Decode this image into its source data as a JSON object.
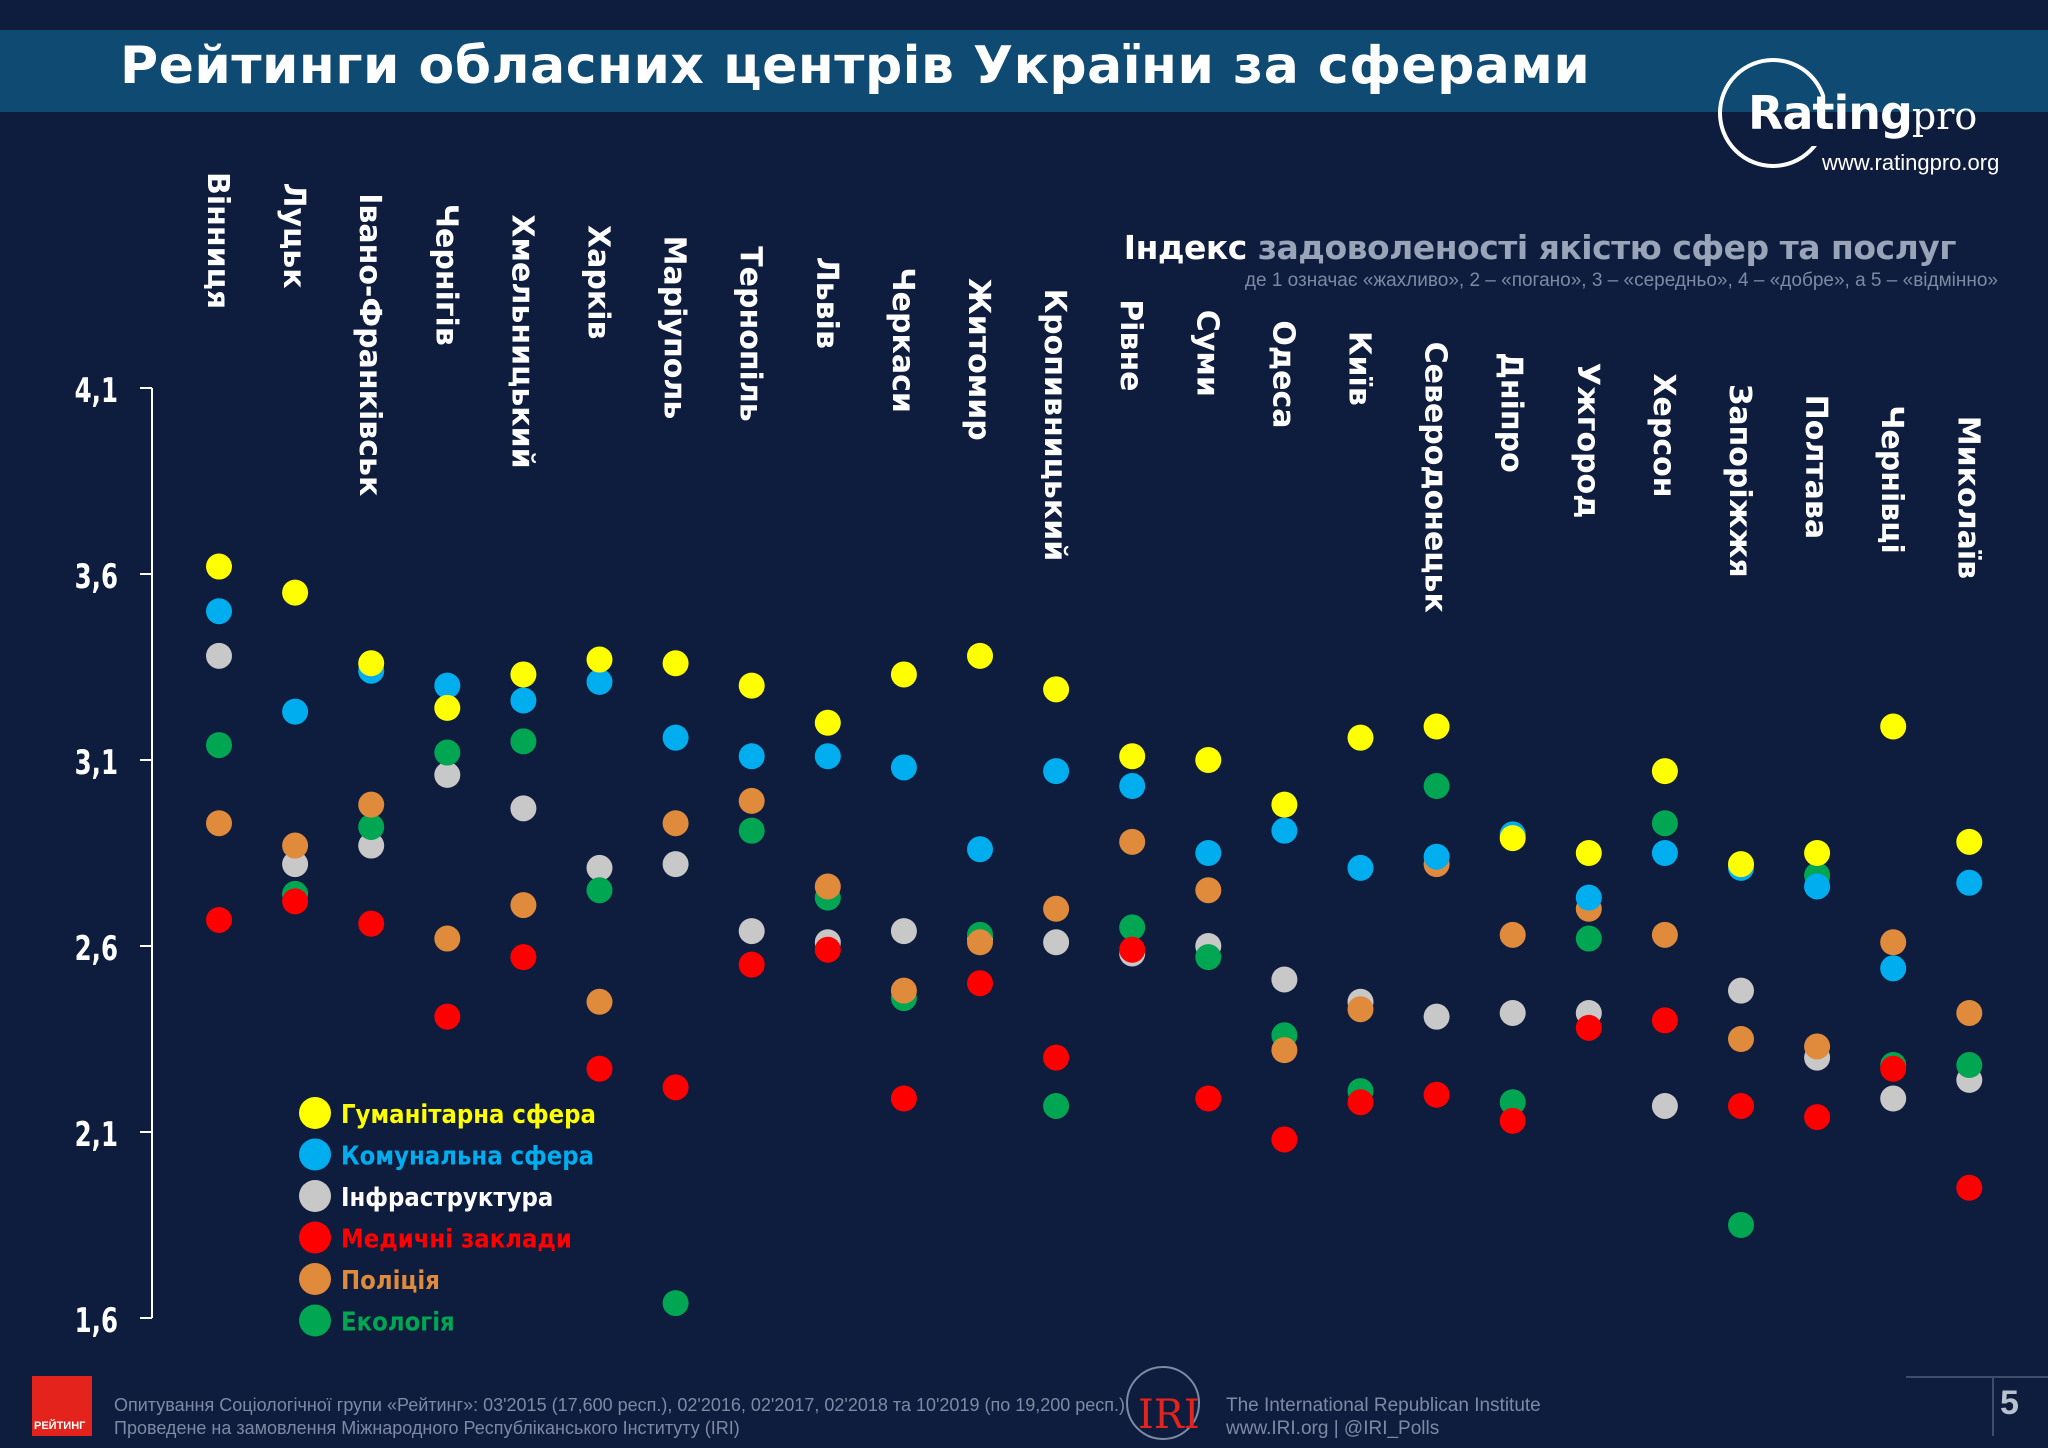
{
  "header": {
    "title": "Рейтинги обласних центрів України за сферами",
    "logo_word": "Rating",
    "logo_suffix": "pro",
    "logo_url": "www.ratingpro.org"
  },
  "subtitle": {
    "main_bold": "Індекс",
    "main_rest": " задоволеності якістю сфер та послуг",
    "note": "де 1 означає «жахливо», 2 – «погано», 3 – «середньо», 4 – «добре», а 5 – «відмінно»"
  },
  "footer": {
    "badge": "РЕЙТИНГ",
    "line1": "Опитування Соціологічної групи «Рейтинг»: 03'2015 (17,600 респ.), 02'2016, 02'2017, 02'2018 та 10'2019 (по 19,200 респ.).",
    "line2": "Проведене на замовлення Міжнародного Республіканського Інституту (IRI)",
    "iri_logo": "IRI",
    "iri_line1": "The International Republican Institute",
    "iri_line2": "www.IRI.org | @IRI_Polls",
    "page_number": "5"
  },
  "colors": {
    "background": "#0e1d3d",
    "axis": "#ffffff",
    "humanitarian": "#ffff00",
    "communal": "#00aeef",
    "infrastructure": "#c8c8c8",
    "medical": "#ff0000",
    "police": "#e08a3c",
    "ecology": "#00a651"
  },
  "chart_data": {
    "type": "scatter",
    "title": "",
    "ylim": [
      1.6,
      4.1
    ],
    "y_ticks": [
      "4,1",
      "3,6",
      "3,1",
      "2,6",
      "2,1",
      "1,6"
    ],
    "y_tick_values": [
      4.1,
      3.6,
      3.1,
      2.6,
      2.1,
      1.6
    ],
    "legend_position": "bottom-left",
    "categories": [
      "Вінниця",
      "Луцьк",
      "Івано-Франківськ",
      "Чернігів",
      "Хмельницький",
      "Харків",
      "Маріуполь",
      "Тернопіль",
      "Львів",
      "Черкаси",
      "Житомир",
      "Кропивницький",
      "Рівне",
      "Суми",
      "Одеса",
      "Київ",
      "Северодонецьк",
      "Дніпро",
      "Ужгород",
      "Херсон",
      "Запоріжжя",
      "Полтава",
      "Чернівці",
      "Миколаїв"
    ],
    "series": [
      {
        "name": "Гуманітарна сфера",
        "color": "#ffff00",
        "values": [
          3.62,
          3.55,
          3.36,
          3.24,
          3.33,
          3.37,
          3.36,
          3.3,
          3.2,
          3.33,
          3.38,
          3.29,
          3.11,
          3.1,
          2.98,
          3.16,
          3.19,
          2.89,
          2.85,
          3.07,
          2.82,
          2.85,
          3.19,
          2.88
        ]
      },
      {
        "name": "Комунальна сфера",
        "color": "#00aeef",
        "values": [
          3.5,
          3.23,
          3.34,
          3.3,
          3.26,
          3.31,
          3.16,
          3.11,
          3.11,
          3.08,
          2.86,
          3.07,
          3.03,
          2.85,
          2.91,
          2.81,
          2.84,
          2.9,
          2.73,
          2.85,
          2.81,
          2.76,
          2.54,
          2.77
        ]
      },
      {
        "name": "Інфраструктура",
        "color": "#c8c8c8",
        "values": [
          3.38,
          2.82,
          2.87,
          3.06,
          2.97,
          2.81,
          2.82,
          2.64,
          2.61,
          2.64,
          2.62,
          2.61,
          2.58,
          2.6,
          2.51,
          2.45,
          2.41,
          2.42,
          2.42,
          2.17,
          2.48,
          2.3,
          2.19,
          2.24
        ]
      },
      {
        "name": "Медичні заклади",
        "color": "#ff0000",
        "values": [
          2.67,
          2.72,
          2.66,
          2.41,
          2.57,
          2.27,
          2.22,
          2.55,
          2.59,
          2.19,
          2.5,
          2.3,
          2.59,
          2.19,
          2.08,
          2.18,
          2.2,
          2.13,
          2.38,
          2.4,
          2.17,
          2.14,
          2.27,
          1.95
        ]
      },
      {
        "name": "Поліція",
        "color": "#e08a3c",
        "values": [
          2.93,
          2.87,
          2.98,
          2.62,
          2.71,
          2.45,
          2.93,
          2.99,
          2.76,
          2.48,
          2.61,
          2.7,
          2.88,
          2.75,
          2.32,
          2.43,
          2.82,
          2.63,
          2.7,
          2.63,
          2.35,
          2.33,
          2.61,
          2.42
        ]
      },
      {
        "name": "Екологія",
        "color": "#00a651",
        "values": [
          3.14,
          2.74,
          2.92,
          3.12,
          3.15,
          2.75,
          1.64,
          2.91,
          2.73,
          2.46,
          2.63,
          2.17,
          2.65,
          2.57,
          2.36,
          2.21,
          3.03,
          2.18,
          2.62,
          2.93,
          1.85,
          2.79,
          2.28,
          2.28
        ]
      }
    ]
  }
}
